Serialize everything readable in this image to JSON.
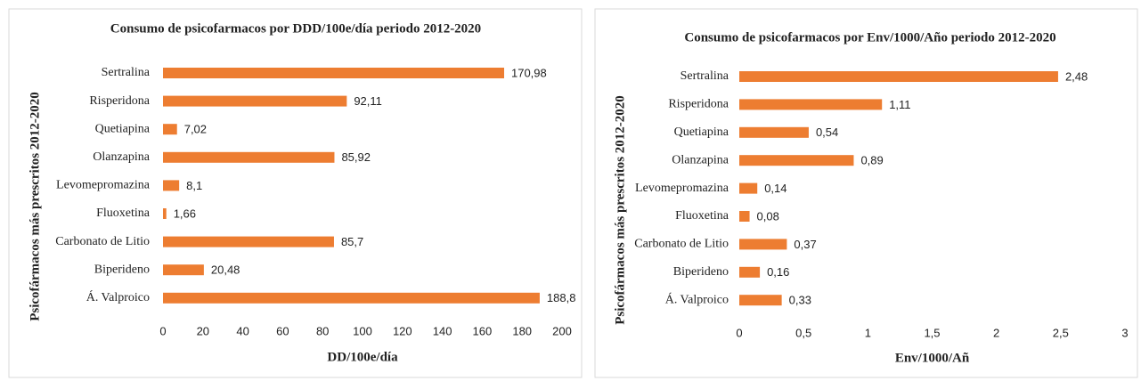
{
  "chart_data": [
    {
      "type": "bar",
      "orientation": "horizontal",
      "title": "Consumo de psicofarmacos por DDD/100e/día periodo 2012-2020",
      "x_label": "DD/100e/día",
      "y_label": "Psicofármacos más prescritos 2012-2020",
      "categories": [
        "Sertralina",
        "Risperidona",
        "Quetiapina",
        "Olanzapina",
        "Levomepromazina",
        "Fluoxetina",
        "Carbonato de Litio",
        "Biperideno",
        "Á. Valproico"
      ],
      "values": [
        170.98,
        92.11,
        7.02,
        85.92,
        8.1,
        1.66,
        85.7,
        20.48,
        188.8
      ],
      "value_labels": [
        "170,98",
        "92,11",
        "7,02",
        "85,92",
        "8,1",
        "1,66",
        "85,7",
        "20,48",
        "188,8"
      ],
      "color": "#ed7d31",
      "xlim": [
        0,
        200
      ],
      "xticks": [
        0,
        20,
        40,
        60,
        80,
        100,
        120,
        140,
        160,
        180,
        200
      ],
      "grid": false
    },
    {
      "type": "bar",
      "orientation": "horizontal",
      "title": "Consumo de psicofarmacos por Env/1000/Año periodo 2012-2020",
      "x_label": "Env/1000/Añ",
      "y_label": "Psicofármacos más prescritos 2012-2020",
      "categories": [
        "Sertralina",
        "Risperidona",
        "Quetiapina",
        "Olanzapina",
        "Levomepromazina",
        "Fluoxetina",
        "Carbonato de Litio",
        "Biperideno",
        "Á. Valproico"
      ],
      "values": [
        2.48,
        1.11,
        0.54,
        0.89,
        0.14,
        0.08,
        0.37,
        0.16,
        0.33
      ],
      "value_labels": [
        "2,48",
        "1,11",
        "0,54",
        "0,89",
        "0,14",
        "0,08",
        "0,37",
        "0,16",
        "0,33"
      ],
      "color": "#ed7d31",
      "xlim": [
        0,
        3
      ],
      "xticks": [
        0,
        {
          "value": 0.5,
          "label": "0,5"
        },
        1,
        {
          "value": 1.5,
          "label": "1,5"
        },
        2,
        {
          "value": 2.5,
          "label": "2,5"
        },
        3
      ],
      "grid": false
    }
  ]
}
